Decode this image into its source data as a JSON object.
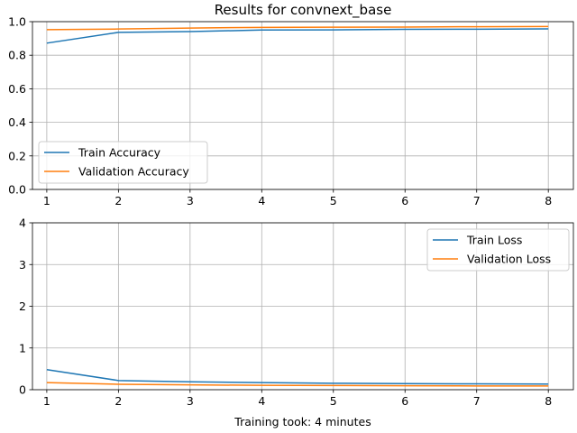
{
  "chart_data": [
    {
      "type": "line",
      "title": "Results for convnext_base",
      "xlabel": "",
      "ylabel": "",
      "x": [
        1,
        2,
        3,
        4,
        5,
        6,
        7,
        8
      ],
      "xticks": [
        "1",
        "2",
        "3",
        "4",
        "5",
        "6",
        "7",
        "8"
      ],
      "xlim": [
        0.8,
        8.35
      ],
      "ylim": [
        0,
        1
      ],
      "yticks": [
        "0.0",
        "0.2",
        "0.4",
        "0.6",
        "0.8",
        "1.0"
      ],
      "grid": true,
      "legend_position": "lower-left",
      "series": [
        {
          "name": "Train Accuracy",
          "color": "#1f77b4",
          "values": [
            0.872,
            0.936,
            0.941,
            0.95,
            0.951,
            0.954,
            0.955,
            0.957
          ]
        },
        {
          "name": "Validation Accuracy",
          "color": "#ff7f0e",
          "values": [
            0.952,
            0.956,
            0.962,
            0.966,
            0.967,
            0.968,
            0.97,
            0.971
          ]
        }
      ]
    },
    {
      "type": "line",
      "title": "",
      "xlabel": "Training took: 4 minutes",
      "ylabel": "",
      "x": [
        1,
        2,
        3,
        4,
        5,
        6,
        7,
        8
      ],
      "xticks": [
        "1",
        "2",
        "3",
        "4",
        "5",
        "6",
        "7",
        "8"
      ],
      "xlim": [
        0.8,
        8.35
      ],
      "ylim": [
        0,
        4
      ],
      "yticks": [
        "0",
        "1",
        "2",
        "3",
        "4"
      ],
      "grid": true,
      "legend_position": "upper-right",
      "series": [
        {
          "name": "Train Loss",
          "color": "#1f77b4",
          "values": [
            0.48,
            0.22,
            0.19,
            0.17,
            0.155,
            0.145,
            0.14,
            0.135
          ]
        },
        {
          "name": "Validation Loss",
          "color": "#ff7f0e",
          "values": [
            0.17,
            0.13,
            0.115,
            0.105,
            0.1,
            0.095,
            0.09,
            0.088
          ]
        }
      ]
    }
  ]
}
